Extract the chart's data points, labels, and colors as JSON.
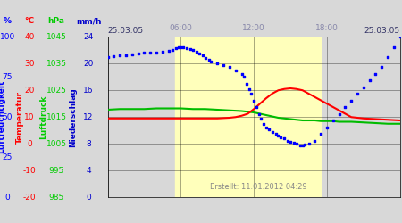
{
  "created": "Erstellt: 11.01.2012 04:29",
  "yellow_region": [
    5.5,
    17.5
  ],
  "background_color": "#d8d8d8",
  "plot_bg_color": "#d8d8d8",
  "yellow_color": "#ffffbb",
  "grid_color": "#000000",
  "blue_x": [
    0,
    0.5,
    1,
    1.5,
    2,
    2.5,
    3,
    3.5,
    4,
    4.5,
    5,
    5.3,
    5.6,
    5.8,
    6.0,
    6.2,
    6.5,
    6.8,
    7.0,
    7.3,
    7.5,
    7.8,
    8.0,
    8.3,
    8.5,
    9.0,
    9.5,
    10.0,
    10.5,
    11.0,
    11.2,
    11.4,
    11.6,
    11.8,
    12.0,
    12.2,
    12.4,
    12.6,
    12.8,
    13.0,
    13.2,
    13.5,
    13.8,
    14.0,
    14.2,
    14.5,
    14.8,
    15.0,
    15.3,
    15.5,
    15.8,
    16.0,
    16.2,
    16.5,
    17.0,
    17.5,
    18.0,
    18.5,
    19.0,
    19.5,
    20.0,
    20.5,
    21.0,
    21.5,
    22.0,
    22.5,
    23.0,
    23.5,
    24.0
  ],
  "blue_y": [
    21.0,
    21.1,
    21.2,
    21.3,
    21.4,
    21.5,
    21.6,
    21.7,
    21.7,
    21.8,
    21.9,
    22.1,
    22.3,
    22.4,
    22.4,
    22.4,
    22.3,
    22.2,
    22.0,
    21.8,
    21.5,
    21.2,
    20.9,
    20.6,
    20.3,
    20.0,
    19.8,
    19.5,
    19.0,
    18.5,
    18.0,
    17.0,
    16.2,
    15.5,
    14.5,
    13.5,
    12.5,
    11.8,
    11.0,
    10.5,
    10.2,
    9.8,
    9.5,
    9.3,
    9.0,
    8.8,
    8.5,
    8.3,
    8.2,
    8.0,
    7.8,
    7.8,
    7.9,
    8.0,
    8.5,
    9.5,
    10.5,
    11.5,
    12.5,
    13.5,
    14.5,
    15.5,
    16.5,
    17.5,
    18.5,
    19.5,
    21.0,
    22.5,
    24.0
  ],
  "red_x": [
    0,
    1,
    2,
    3,
    4,
    5,
    6,
    7,
    8,
    9,
    10,
    10.5,
    11.0,
    11.5,
    12.0,
    12.5,
    13.0,
    13.5,
    14.0,
    14.5,
    15.0,
    15.5,
    16.0,
    16.5,
    17.0,
    17.5,
    18.0,
    18.5,
    19.0,
    19.5,
    20.0,
    21.0,
    22.0,
    23.0,
    24.0
  ],
  "red_y": [
    11.8,
    11.8,
    11.8,
    11.8,
    11.8,
    11.8,
    11.8,
    11.8,
    11.8,
    11.8,
    11.9,
    12.0,
    12.2,
    12.5,
    13.2,
    14.0,
    14.8,
    15.5,
    16.0,
    16.2,
    16.3,
    16.2,
    16.0,
    15.5,
    15.0,
    14.5,
    14.0,
    13.5,
    13.0,
    12.5,
    12.0,
    11.8,
    11.7,
    11.6,
    11.5
  ],
  "green_x": [
    0,
    1,
    2,
    3,
    4,
    5,
    6,
    7,
    8,
    9,
    10,
    11,
    11.5,
    12.0,
    12.5,
    13.0,
    13.5,
    14.0,
    14.5,
    15.0,
    15.5,
    16.0,
    16.5,
    17.0,
    17.5,
    18.0,
    18.5,
    19.0,
    19.5,
    20.0,
    21.0,
    22.0,
    23.0,
    24.0
  ],
  "green_y": [
    13.1,
    13.2,
    13.2,
    13.2,
    13.3,
    13.3,
    13.3,
    13.2,
    13.2,
    13.1,
    13.0,
    12.9,
    12.8,
    12.7,
    12.5,
    12.3,
    12.1,
    11.9,
    11.8,
    11.7,
    11.6,
    11.5,
    11.5,
    11.5,
    11.4,
    11.4,
    11.4,
    11.3,
    11.3,
    11.3,
    11.2,
    11.1,
    11.0,
    11.0
  ],
  "col_blue": "#0000ff",
  "col_red": "#ff0000",
  "col_green": "#00bb00",
  "col_lf": "#0000ff",
  "col_temp": "#ff0000",
  "col_lp": "#00cc00",
  "col_ns": "#0000cc",
  "lf_label": "Luftfeuchtigkeit",
  "temp_label": "Temperatur",
  "lp_label": "Luftdruck",
  "ns_label": "Niederschlag",
  "fontsize": 6.5
}
